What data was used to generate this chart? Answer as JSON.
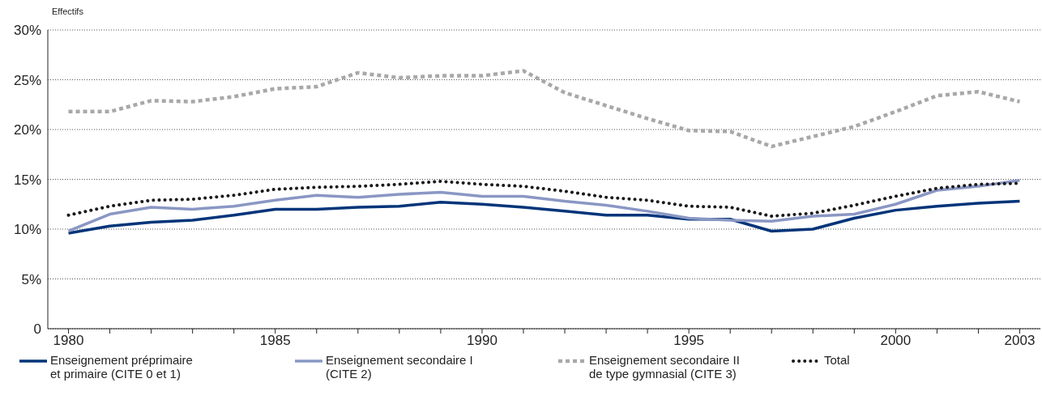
{
  "chart_data": {
    "type": "line",
    "ylabel": "Effectifs",
    "x": [
      1980,
      1981,
      1982,
      1983,
      1984,
      1985,
      1986,
      1987,
      1988,
      1989,
      1990,
      1991,
      1992,
      1993,
      1994,
      1995,
      1996,
      1997,
      1998,
      1999,
      2000,
      2001,
      2002,
      2003
    ],
    "xlim": [
      1979.5,
      2003.5
    ],
    "xticks": [
      1980,
      {
        "value": 1981,
        "label": null
      },
      {
        "value": 1982,
        "label": null
      },
      {
        "value": 1983,
        "label": null
      },
      {
        "value": 1984,
        "label": null
      },
      1985,
      {
        "value": 1986,
        "label": null
      },
      {
        "value": 1987,
        "label": null
      },
      {
        "value": 1988,
        "label": null
      },
      {
        "value": 1989,
        "label": null
      },
      1990,
      {
        "value": 1991,
        "label": null
      },
      {
        "value": 1992,
        "label": null
      },
      {
        "value": 1993,
        "label": null
      },
      {
        "value": 1994,
        "label": null
      },
      1995,
      {
        "value": 1996,
        "label": null
      },
      {
        "value": 1997,
        "label": null
      },
      {
        "value": 1998,
        "label": null
      },
      {
        "value": 1999,
        "label": null
      },
      2000,
      {
        "value": 2001,
        "label": null
      },
      {
        "value": 2002,
        "label": null
      },
      2003
    ],
    "ylim": [
      0,
      30
    ],
    "yticks": [
      0,
      {
        "value": 5,
        "label": "5%"
      },
      {
        "value": 10,
        "label": "10%"
      },
      {
        "value": 15,
        "label": "15%"
      },
      {
        "value": 20,
        "label": "20%"
      },
      {
        "value": 25,
        "label": "25%"
      },
      {
        "value": 30,
        "label": "30%"
      }
    ],
    "grid": "y",
    "legend": "bottom",
    "marker": "none",
    "series": [
      {
        "name": "Enseignement préprimaire et primaire (CITE 0 et 1)",
        "color": "#003479",
        "line_style": "solid",
        "values": [
          9.6,
          10.3,
          10.7,
          10.9,
          11.4,
          12.0,
          12.0,
          12.2,
          12.3,
          12.7,
          12.5,
          12.2,
          11.8,
          11.4,
          11.4,
          11.0,
          11.0,
          9.8,
          10.0,
          11.1,
          11.9,
          12.3,
          12.6,
          12.8
        ]
      },
      {
        "name": "Enseignement secondaire I (CITE 2)",
        "color": "#8a97c4",
        "line_style": "solid",
        "values": [
          9.8,
          11.5,
          12.2,
          12.0,
          12.3,
          12.9,
          13.4,
          13.2,
          13.5,
          13.7,
          13.3,
          13.3,
          12.8,
          12.4,
          11.8,
          11.1,
          10.9,
          10.8,
          11.3,
          11.5,
          12.5,
          13.9,
          14.3,
          14.9
        ]
      },
      {
        "name": "Enseignement secondaire II de type gymnasial (CITE 3)",
        "color": "#a8a8a8",
        "line_style": "dashed",
        "values": [
          21.8,
          21.8,
          22.9,
          22.8,
          23.3,
          24.1,
          24.3,
          25.7,
          25.2,
          25.4,
          25.4,
          25.9,
          23.7,
          22.4,
          21.1,
          19.9,
          19.8,
          18.3,
          19.3,
          20.3,
          21.8,
          23.4,
          23.8,
          22.8
        ]
      },
      {
        "name": "Total",
        "color": "#1a1a1a",
        "line_style": "dotted",
        "values": [
          11.4,
          12.3,
          12.9,
          13.0,
          13.4,
          14.0,
          14.2,
          14.3,
          14.5,
          14.8,
          14.5,
          14.3,
          13.8,
          13.2,
          12.9,
          12.3,
          12.2,
          11.3,
          11.6,
          12.4,
          13.3,
          14.1,
          14.5,
          14.6
        ]
      }
    ]
  }
}
